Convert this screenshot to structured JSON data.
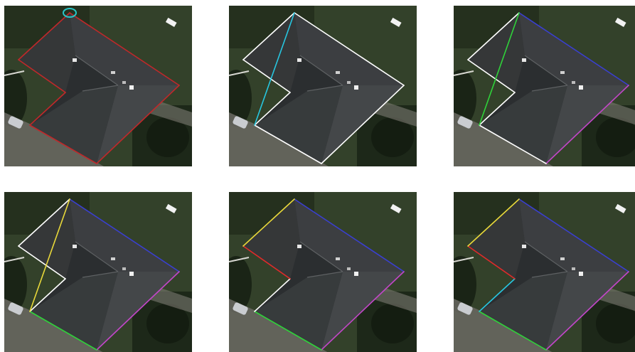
{
  "figure": {
    "panels": [
      {
        "id": "p1",
        "step": 1,
        "segments": [
          {
            "from": "A",
            "to": "B",
            "color": "#c0282a"
          },
          {
            "from": "B",
            "to": "C",
            "color": "#c0282a"
          },
          {
            "from": "C",
            "to": "D",
            "color": "#c0282a"
          },
          {
            "from": "D",
            "to": "E",
            "color": "#c0282a"
          },
          {
            "from": "E",
            "to": "F",
            "color": "#c0282a"
          },
          {
            "from": "F",
            "to": "A",
            "color": "#c0282a"
          }
        ],
        "marker": {
          "at": "A",
          "color": "#27c6c8"
        }
      },
      {
        "id": "p2",
        "step": 2,
        "segments": [
          {
            "from": "A",
            "to": "B",
            "color": "#ffffff"
          },
          {
            "from": "B",
            "to": "C",
            "color": "#ffffff"
          },
          {
            "from": "C",
            "to": "D",
            "color": "#ffffff"
          },
          {
            "from": "D",
            "to": "E",
            "color": "#ffffff"
          },
          {
            "from": "E",
            "to": "F",
            "color": "#ffffff"
          },
          {
            "from": "F",
            "to": "A",
            "color": "#ffffff"
          },
          {
            "from": "A",
            "to": "D",
            "color": "#27c6e0"
          }
        ]
      },
      {
        "id": "p3",
        "step": 3,
        "segments": [
          {
            "from": "A",
            "to": "B",
            "color": "#3a3fd0"
          },
          {
            "from": "B",
            "to": "C",
            "color": "#c246c8"
          },
          {
            "from": "C",
            "to": "D",
            "color": "#ffffff"
          },
          {
            "from": "D",
            "to": "E",
            "color": "#ffffff"
          },
          {
            "from": "E",
            "to": "F",
            "color": "#ffffff"
          },
          {
            "from": "F",
            "to": "A",
            "color": "#ffffff"
          },
          {
            "from": "A",
            "to": "D",
            "color": "#2fd23a"
          }
        ]
      },
      {
        "id": "p4",
        "step": 4,
        "segments": [
          {
            "from": "A",
            "to": "B",
            "color": "#3a3fd0"
          },
          {
            "from": "B",
            "to": "C",
            "color": "#c246c8"
          },
          {
            "from": "C",
            "to": "D",
            "color": "#2fd23a"
          },
          {
            "from": "D",
            "to": "E",
            "color": "#ffffff"
          },
          {
            "from": "E",
            "to": "F",
            "color": "#ffffff"
          },
          {
            "from": "F",
            "to": "A",
            "color": "#ffffff"
          },
          {
            "from": "A",
            "to": "D",
            "color": "#e8d83a"
          }
        ]
      },
      {
        "id": "p5",
        "step": 5,
        "segments": [
          {
            "from": "A",
            "to": "B",
            "color": "#3a3fd0"
          },
          {
            "from": "B",
            "to": "C",
            "color": "#c246c8"
          },
          {
            "from": "C",
            "to": "D",
            "color": "#2fd23a"
          },
          {
            "from": "D",
            "to": "E",
            "color": "#ffffff"
          },
          {
            "from": "E",
            "to": "F",
            "color": "#e02a2a"
          },
          {
            "from": "F",
            "to": "A",
            "color": "#e8d83a"
          }
        ]
      },
      {
        "id": "p6",
        "step": 6,
        "segments": [
          {
            "from": "A",
            "to": "B",
            "color": "#3a3fd0"
          },
          {
            "from": "B",
            "to": "C",
            "color": "#c246c8"
          },
          {
            "from": "C",
            "to": "D",
            "color": "#2fd23a"
          },
          {
            "from": "D",
            "to": "E",
            "color": "#27c6e0"
          },
          {
            "from": "E",
            "to": "F",
            "color": "#e02a2a"
          },
          {
            "from": "F",
            "to": "A",
            "color": "#e8d83a"
          }
        ]
      }
    ],
    "colors": {
      "roof_dark": "#2b2e30",
      "roof_light": "#4a4d50",
      "grass_dark": "#1f2a1a",
      "grass_mid": "#33412a",
      "path": "#6b6a63"
    }
  }
}
